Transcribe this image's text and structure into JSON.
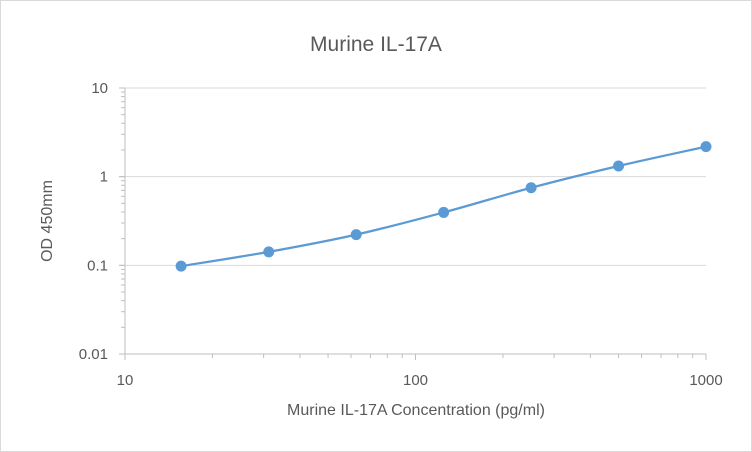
{
  "chart_data": {
    "type": "scatter",
    "title": "Murine IL-17A",
    "xlabel": "Murine IL-17A Concentration (pg/ml)",
    "ylabel": "OD 450mm",
    "xscale": "log",
    "yscale": "log",
    "xlim": [
      10,
      1000
    ],
    "ylim": [
      0.01,
      10
    ],
    "xticks": [
      10,
      100,
      1000
    ],
    "yticks": [
      0.01,
      0.1,
      1,
      10
    ],
    "xtick_labels": [
      "10",
      "100",
      "1000"
    ],
    "ytick_labels": [
      "0.01",
      "0.1",
      "1",
      "10"
    ],
    "grid": "horizontal-major",
    "legend": "none",
    "series": [
      {
        "color": "#5b9bd5",
        "line": "smooth",
        "marker": "circle",
        "x": [
          15.6,
          31.25,
          62.5,
          125,
          250,
          500,
          1000
        ],
        "y": [
          0.098,
          0.142,
          0.222,
          0.395,
          0.75,
          1.32,
          2.18
        ]
      }
    ]
  }
}
